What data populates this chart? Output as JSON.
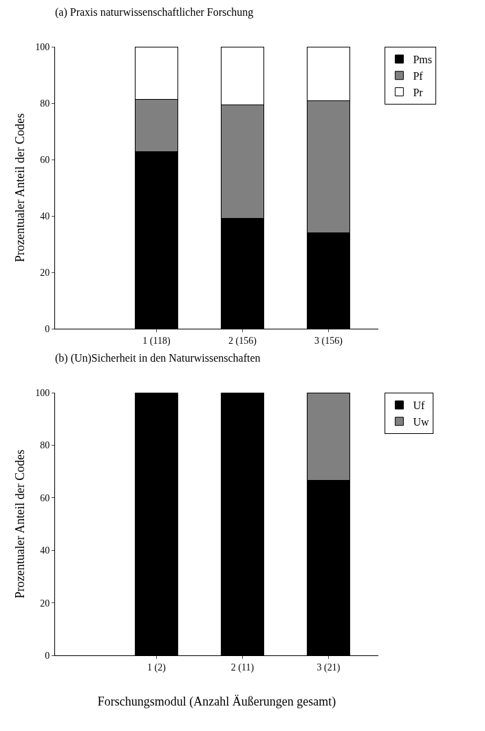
{
  "chart_data": [
    {
      "type": "bar",
      "title": "(a) Praxis naturwissenschaftlicher Forschung",
      "ylabel": "Prozentualer Anteil der Codes",
      "categories": [
        "1 (118)",
        "2 (156)",
        "3 (156)"
      ],
      "stacked": true,
      "ylim": [
        0,
        100
      ],
      "yticks": [
        0,
        20,
        40,
        60,
        80,
        100
      ],
      "legend": "top right",
      "series": [
        {
          "name": "Pms",
          "color": "#000000",
          "values": [
            62.7,
            39.1,
            34.0
          ]
        },
        {
          "name": "Pf",
          "color": "#808080",
          "values": [
            18.6,
            40.4,
            46.8
          ]
        },
        {
          "name": "Pr",
          "color": "#ffffff",
          "values": [
            18.7,
            20.5,
            19.2
          ]
        }
      ]
    },
    {
      "type": "bar",
      "title": "(b) (Un)Sicherheit in den Naturwissenschaften",
      "ylabel": "Prozentualer Anteil der Codes",
      "xlabel": "Forschungsmodul (Anzahl Äußerungen gesamt)",
      "categories": [
        "1 (2)",
        "2 (11)",
        "3 (21)"
      ],
      "stacked": true,
      "ylim": [
        0,
        100
      ],
      "yticks": [
        0,
        20,
        40,
        60,
        80,
        100
      ],
      "legend": "top right",
      "series": [
        {
          "name": "Uf",
          "color": "#000000",
          "values": [
            100,
            100,
            66.7
          ]
        },
        {
          "name": "Uw",
          "color": "#808080",
          "values": [
            null,
            null,
            33.3
          ]
        }
      ]
    }
  ]
}
